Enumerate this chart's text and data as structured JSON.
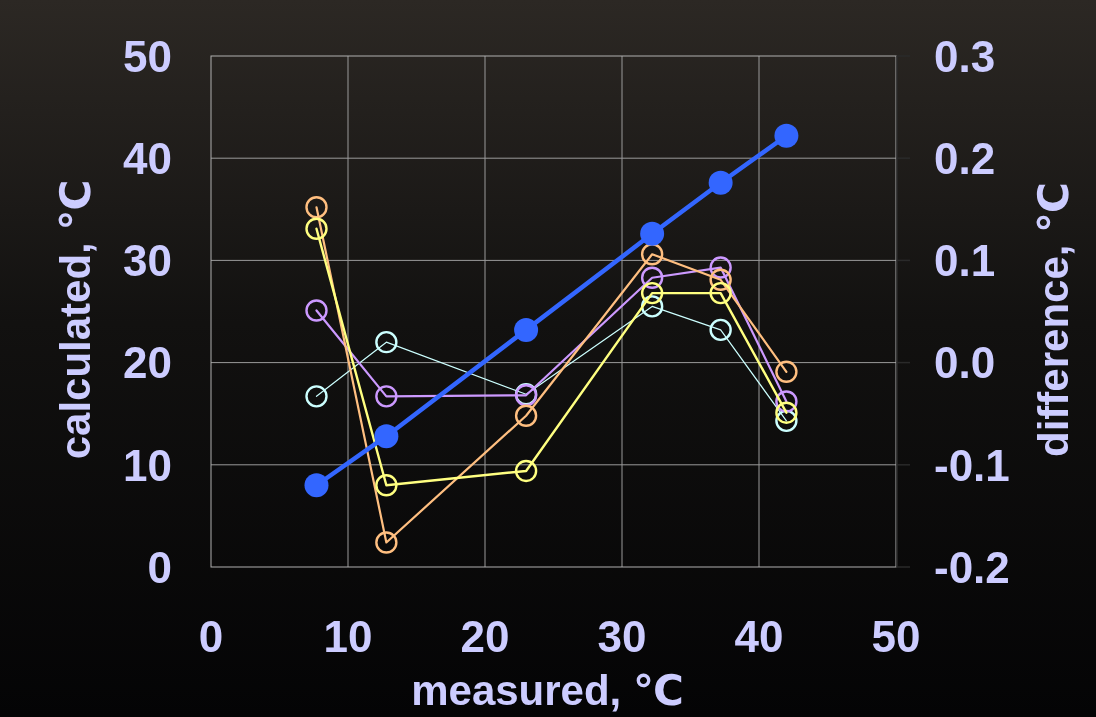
{
  "chart_data": {
    "type": "line",
    "xlabel": "measured, ℃",
    "ylabel": "calculated, ℃",
    "y2label": "difference, ℃",
    "x": [
      7.7,
      12.8,
      23.0,
      32.2,
      37.2,
      42.0
    ],
    "xlim": [
      0,
      50
    ],
    "xticks": [
      0,
      10,
      20,
      30,
      40,
      50
    ],
    "ylim": [
      0,
      50
    ],
    "yticks": [
      0,
      10,
      20,
      30,
      40,
      50
    ],
    "y2lim": [
      -0.2,
      0.3
    ],
    "y2ticks": [
      -0.2,
      -0.1,
      {
        "value": 0,
        "label": "0.0"
      },
      0.1,
      0.2,
      0.3
    ],
    "grid": true,
    "marker": "circle",
    "series": [
      {
        "color": "#ccffff",
        "axis": "y2",
        "values": [
          -0.033,
          0.02,
          -0.031,
          0.055,
          0.032,
          -0.057
        ]
      },
      {
        "color": "#cc99ff",
        "axis": "y2",
        "values": [
          0.051,
          -0.033,
          -0.032,
          0.083,
          0.093,
          -0.038
        ]
      },
      {
        "color": "#ffbf80",
        "axis": "y2",
        "values": [
          0.152,
          -0.176,
          -0.052,
          0.106,
          0.081,
          -0.009
        ]
      },
      {
        "color": "#ffff80",
        "axis": "y2",
        "values": [
          0.131,
          -0.12,
          -0.106,
          0.068,
          0.068,
          -0.049
        ]
      },
      {
        "color": "#3366ff",
        "values": [
          8.0,
          12.8,
          23.2,
          32.6,
          37.6,
          42.2
        ]
      }
    ]
  }
}
